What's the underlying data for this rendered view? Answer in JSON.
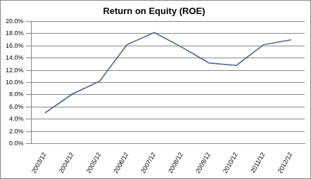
{
  "chart_data": {
    "type": "line",
    "title": "Return on Equity (ROE)",
    "categories": [
      "2003/12",
      "2004/12",
      "2005/12",
      "2006/12",
      "2007/12",
      "2008/12",
      "2009/12",
      "2010/12",
      "2011/12",
      "2012/12"
    ],
    "values": [
      5.0,
      8.1,
      10.2,
      16.2,
      18.2,
      15.8,
      13.2,
      12.8,
      16.2,
      17.0
    ],
    "color": "#4a5b8c",
    "ylim": [
      0,
      20
    ],
    "yticks": [
      {
        "value": 0,
        "label": "0.0%"
      },
      {
        "value": 2,
        "label": "2.0%"
      },
      {
        "value": 4,
        "label": "4.0%"
      },
      {
        "value": 6,
        "label": "6.0%"
      },
      {
        "value": 8,
        "label": "8.0%"
      },
      {
        "value": 10,
        "label": "10.0%"
      },
      {
        "value": 12,
        "label": "12.0%"
      },
      {
        "value": 14,
        "label": "14.0%"
      },
      {
        "value": 16,
        "label": "16.0%"
      },
      {
        "value": 18,
        "label": "18.0%"
      },
      {
        "value": 20,
        "label": "20.0%"
      }
    ],
    "grid": true
  }
}
